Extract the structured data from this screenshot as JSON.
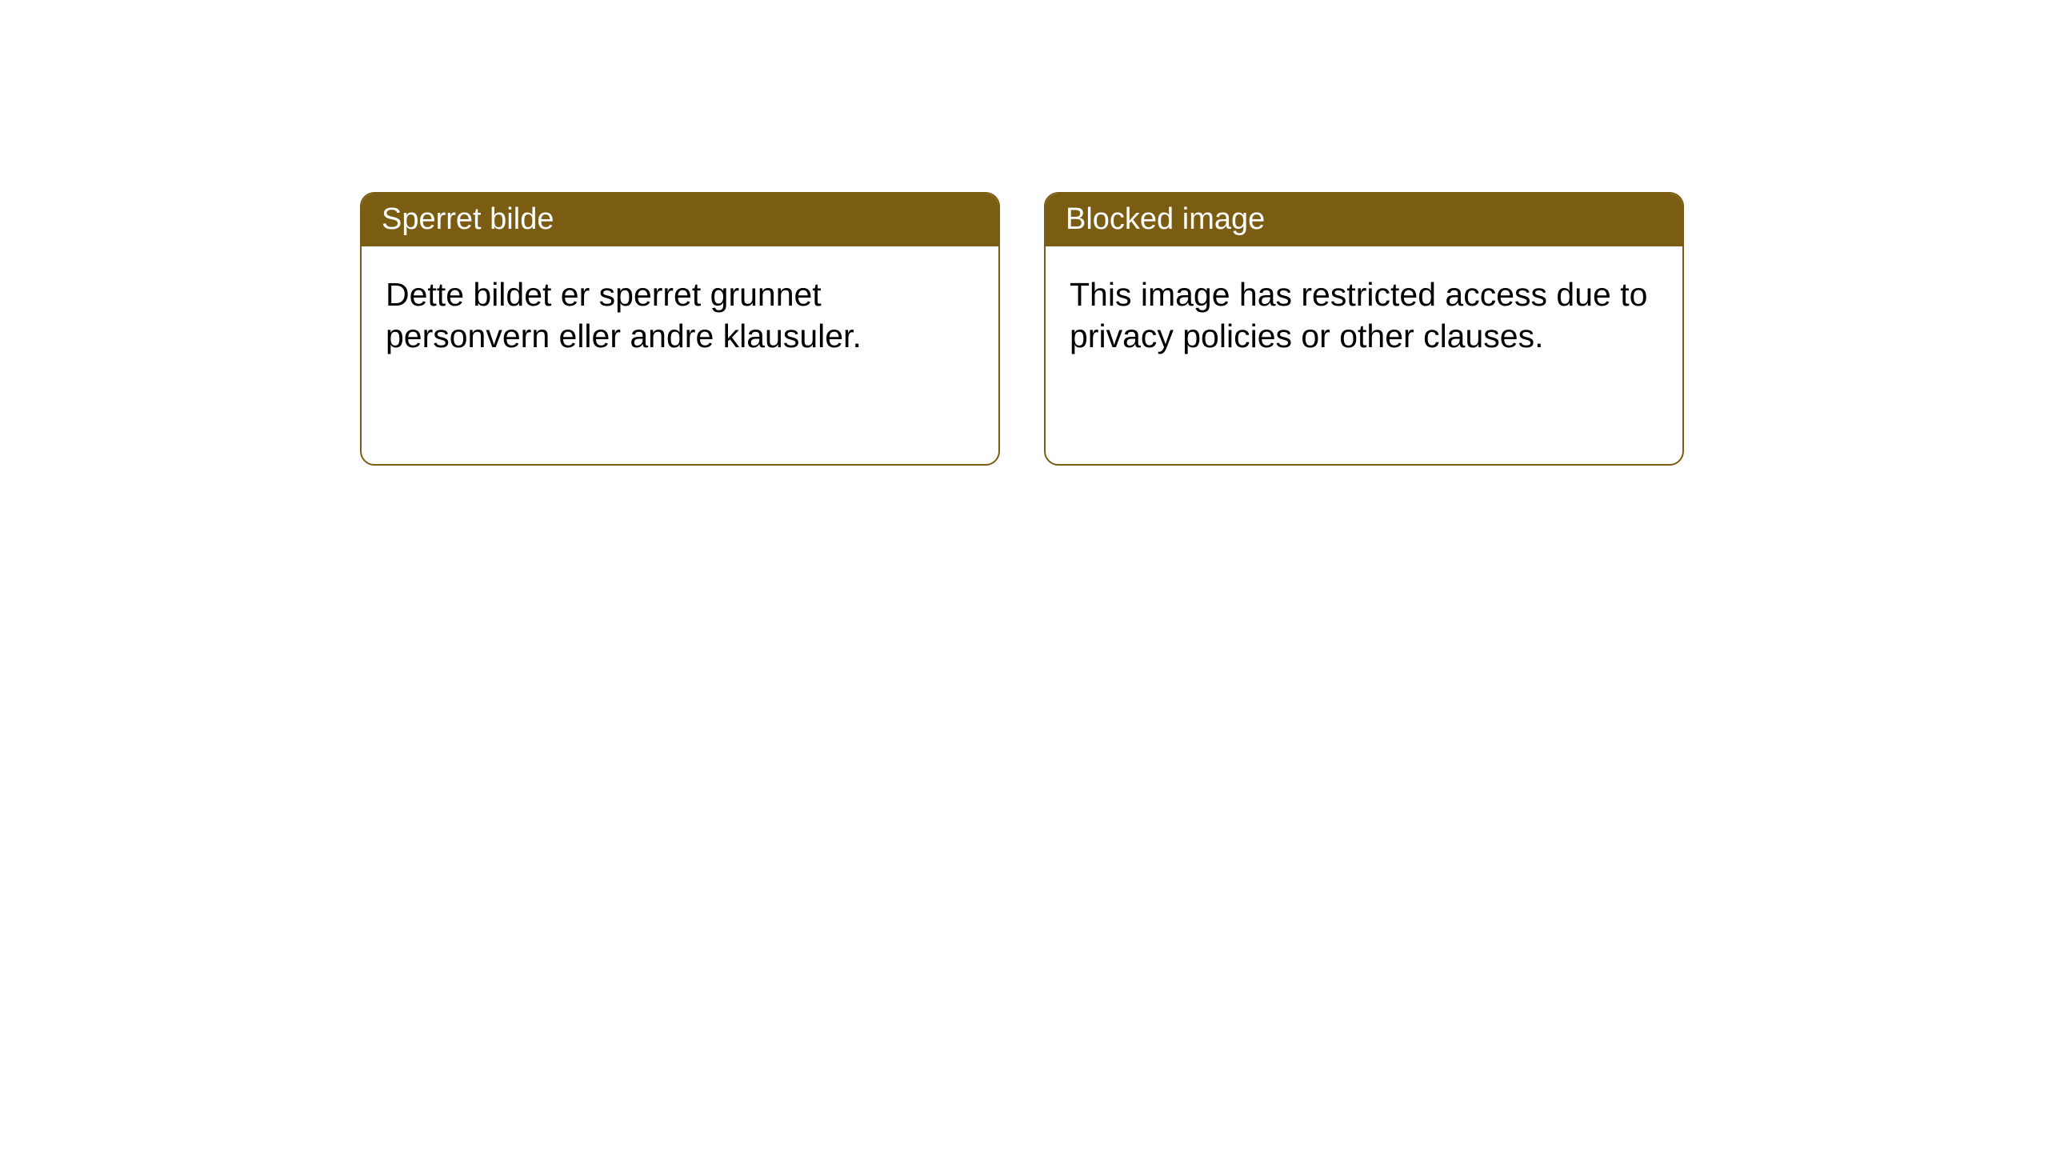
{
  "layout": {
    "background_color": "#ffffff",
    "card_border_color": "#7a5d12",
    "card_border_radius": 18,
    "header_bg_color": "#7a5d12",
    "header_text_color": "#ffffff",
    "body_text_color": "#000000",
    "header_fontsize": 38,
    "body_fontsize": 41
  },
  "cards": {
    "left": {
      "title": "Sperret bilde",
      "body": "Dette bildet er sperret grunnet personvern eller andre klausuler."
    },
    "right": {
      "title": "Blocked image",
      "body": "This image has restricted access due to privacy policies or other clauses."
    }
  }
}
